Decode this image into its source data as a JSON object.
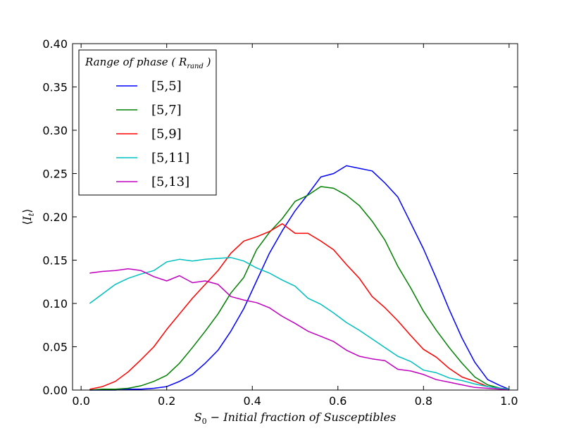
{
  "chart_data": {
    "type": "line",
    "xlabel": "S₀ − Initial fraction of Susceptibles",
    "ylabel": "⟨Iₜ⟩",
    "xlim": [
      -0.02,
      1.02
    ],
    "ylim": [
      0,
      0.4
    ],
    "xticks": [
      0.0,
      0.2,
      0.4,
      0.6,
      0.8,
      1.0
    ],
    "xtick_labels": [
      "0.0",
      "0.2",
      "0.4",
      "0.6",
      "0.8",
      "1.0"
    ],
    "yticks": [
      0.0,
      0.05,
      0.1,
      0.15,
      0.2,
      0.25,
      0.3,
      0.35,
      0.4
    ],
    "ytick_labels": [
      "0.00",
      "0.05",
      "0.10",
      "0.15",
      "0.20",
      "0.25",
      "0.30",
      "0.35",
      "0.40"
    ],
    "legend": {
      "title": "Range of phase ( R_rand )",
      "placement": "top-left"
    },
    "series": [
      {
        "name": "[5,5]",
        "color": "#0000ff",
        "x": [
          0.02,
          0.05,
          0.08,
          0.11,
          0.14,
          0.17,
          0.2,
          0.23,
          0.26,
          0.29,
          0.32,
          0.35,
          0.38,
          0.41,
          0.44,
          0.47,
          0.5,
          0.53,
          0.56,
          0.59,
          0.62,
          0.65,
          0.68,
          0.71,
          0.74,
          0.77,
          0.8,
          0.83,
          0.86,
          0.89,
          0.92,
          0.95,
          0.98,
          1.0
        ],
        "y": [
          0.0,
          0.0,
          0.0,
          0.001,
          0.001,
          0.002,
          0.004,
          0.01,
          0.018,
          0.031,
          0.046,
          0.068,
          0.094,
          0.126,
          0.158,
          0.184,
          0.207,
          0.226,
          0.246,
          0.25,
          0.259,
          0.256,
          0.253,
          0.239,
          0.223,
          0.193,
          0.163,
          0.129,
          0.093,
          0.06,
          0.032,
          0.012,
          0.005,
          0.001
        ]
      },
      {
        "name": "[5,7]",
        "color": "#008000",
        "x": [
          0.02,
          0.05,
          0.08,
          0.11,
          0.14,
          0.17,
          0.2,
          0.23,
          0.26,
          0.29,
          0.32,
          0.35,
          0.38,
          0.41,
          0.44,
          0.47,
          0.5,
          0.53,
          0.56,
          0.59,
          0.62,
          0.65,
          0.68,
          0.71,
          0.74,
          0.77,
          0.8,
          0.83,
          0.86,
          0.89,
          0.92,
          0.95,
          0.98,
          1.0
        ],
        "y": [
          0.0,
          0.001,
          0.001,
          0.002,
          0.005,
          0.01,
          0.017,
          0.031,
          0.049,
          0.068,
          0.088,
          0.112,
          0.13,
          0.162,
          0.182,
          0.198,
          0.218,
          0.225,
          0.235,
          0.233,
          0.225,
          0.213,
          0.195,
          0.173,
          0.143,
          0.118,
          0.091,
          0.069,
          0.049,
          0.031,
          0.015,
          0.006,
          0.002,
          0.001
        ]
      },
      {
        "name": "[5,9]",
        "color": "#ff0000",
        "x": [
          0.02,
          0.05,
          0.08,
          0.11,
          0.14,
          0.17,
          0.2,
          0.23,
          0.26,
          0.29,
          0.32,
          0.35,
          0.38,
          0.41,
          0.44,
          0.47,
          0.5,
          0.53,
          0.56,
          0.59,
          0.62,
          0.65,
          0.68,
          0.71,
          0.74,
          0.77,
          0.8,
          0.83,
          0.86,
          0.89,
          0.92,
          0.95,
          0.98,
          1.0
        ],
        "y": [
          0.001,
          0.004,
          0.01,
          0.021,
          0.035,
          0.05,
          0.07,
          0.088,
          0.106,
          0.122,
          0.138,
          0.158,
          0.172,
          0.177,
          0.183,
          0.192,
          0.181,
          0.181,
          0.172,
          0.162,
          0.145,
          0.129,
          0.108,
          0.095,
          0.08,
          0.063,
          0.047,
          0.038,
          0.025,
          0.015,
          0.01,
          0.004,
          0.002,
          0.001
        ]
      },
      {
        "name": "[5,11]",
        "color": "#00bfbf",
        "x": [
          0.02,
          0.05,
          0.08,
          0.11,
          0.14,
          0.17,
          0.2,
          0.23,
          0.26,
          0.29,
          0.32,
          0.35,
          0.38,
          0.41,
          0.44,
          0.47,
          0.5,
          0.53,
          0.56,
          0.59,
          0.62,
          0.65,
          0.68,
          0.71,
          0.74,
          0.77,
          0.8,
          0.83,
          0.86,
          0.89,
          0.92,
          0.95,
          0.98,
          1.0
        ],
        "y": [
          0.1,
          0.111,
          0.122,
          0.129,
          0.134,
          0.138,
          0.148,
          0.151,
          0.149,
          0.151,
          0.152,
          0.153,
          0.149,
          0.141,
          0.135,
          0.127,
          0.12,
          0.106,
          0.099,
          0.089,
          0.078,
          0.069,
          0.059,
          0.049,
          0.039,
          0.033,
          0.023,
          0.02,
          0.014,
          0.011,
          0.007,
          0.004,
          0.002,
          0.001
        ]
      },
      {
        "name": "[5,13]",
        "color": "#bf00bf",
        "x": [
          0.02,
          0.05,
          0.08,
          0.11,
          0.14,
          0.17,
          0.2,
          0.23,
          0.26,
          0.29,
          0.32,
          0.35,
          0.38,
          0.41,
          0.44,
          0.47,
          0.5,
          0.53,
          0.56,
          0.59,
          0.62,
          0.65,
          0.68,
          0.71,
          0.74,
          0.77,
          0.8,
          0.83,
          0.86,
          0.89,
          0.92,
          0.95,
          0.98,
          1.0
        ],
        "y": [
          0.135,
          0.137,
          0.138,
          0.14,
          0.138,
          0.131,
          0.126,
          0.132,
          0.124,
          0.126,
          0.122,
          0.108,
          0.104,
          0.101,
          0.095,
          0.085,
          0.077,
          0.068,
          0.062,
          0.056,
          0.046,
          0.039,
          0.036,
          0.034,
          0.024,
          0.022,
          0.018,
          0.012,
          0.009,
          0.006,
          0.003,
          0.002,
          0.001,
          0.0
        ]
      }
    ]
  }
}
